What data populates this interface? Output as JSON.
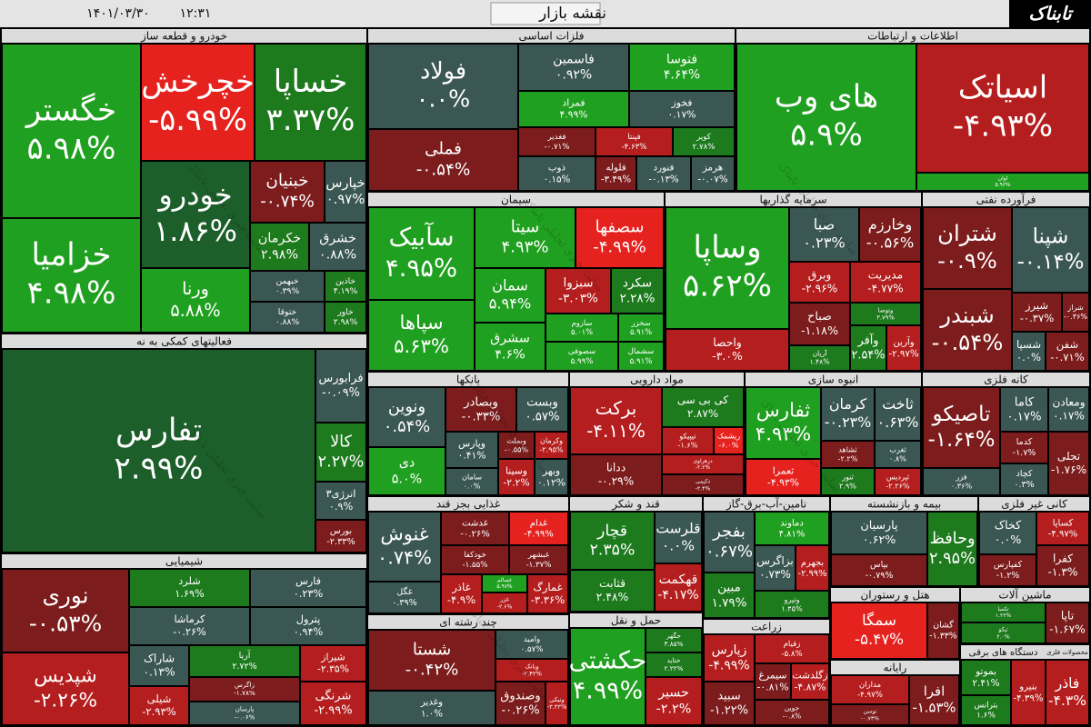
{
  "header": {
    "date": "۱۴۰۱/۰۳/۳۰",
    "time": "۱۲:۳۱",
    "title": "نقشه بازار",
    "logo": "تابناک",
    "watermark": "سایت خبری تحلیلی تابناک"
  },
  "sectors": [
    {
      "name": "خودرو و قطعه ساز",
      "tiles": [
        {
          "name": "خگستر",
          "change": "۵.۹۸%"
        },
        {
          "name": "خزامیا",
          "change": "۴.۹۸%"
        },
        {
          "name": "خچرخش",
          "change": "-۵.۹۹%"
        },
        {
          "name": "خساپا",
          "change": "۳.۳۷%"
        },
        {
          "name": "خودرو",
          "change": "۱.۸۶%"
        },
        {
          "name": "ورنا",
          "change": "۵.۸۸%"
        },
        {
          "name": "خبنیان",
          "change": "-۰.۷۴%"
        },
        {
          "name": "خپارس",
          "change": "۰.۹۷%"
        },
        {
          "name": "خکرمان",
          "change": "۲.۹۸%"
        },
        {
          "name": "خشرق",
          "change": "۰.۸۸%"
        },
        {
          "name": "خبهمن",
          "change": "۰.۳۹%"
        },
        {
          "name": "خاذین",
          "change": "۴.۱۹%"
        },
        {
          "name": "خاور",
          "change": "۲.۹۸%"
        },
        {
          "name": "ختوقا",
          "change": "۰.۸۸%"
        }
      ]
    },
    {
      "name": "فلزات اساسی",
      "tiles": [
        {
          "name": "فولاد",
          "change": "۰.۰%"
        },
        {
          "name": "فملی",
          "change": "-۰.۵۴%"
        },
        {
          "name": "فاسمین",
          "change": "۰.۹۲%"
        },
        {
          "name": "فتوسا",
          "change": "۴.۶۴%"
        },
        {
          "name": "فمراد",
          "change": "۴.۹۹%"
        },
        {
          "name": "فخوز",
          "change": "۰.۱۷%"
        },
        {
          "name": "فغدیر",
          "change": "-۰.۷۱%"
        },
        {
          "name": "فپنتا",
          "change": "-۴.۶۳%"
        },
        {
          "name": "کویر",
          "change": "۲.۷۸%"
        },
        {
          "name": "ذوب",
          "change": "۰.۱۵%"
        },
        {
          "name": "فلوله",
          "change": "-۳.۴۹%"
        },
        {
          "name": "فنورد",
          "change": "-۰.۱۳%"
        },
        {
          "name": "هرمز",
          "change": "-۰.۰۷%"
        }
      ]
    },
    {
      "name": "اطلاعات و ارتباطات",
      "tiles": [
        {
          "name": "های وب",
          "change": "۵.۹%"
        },
        {
          "name": "اسیاتک",
          "change": "-۴.۹۳%"
        },
        {
          "name": "اوان",
          "change": "۵.۹۶%"
        }
      ]
    },
    {
      "name": "سیمان",
      "tiles": [
        {
          "name": "سآبیک",
          "change": "۴.۹۵%"
        },
        {
          "name": "سپاها",
          "change": "۵.۶۳%"
        },
        {
          "name": "سیتا",
          "change": "۴.۹۳%"
        },
        {
          "name": "سصفها",
          "change": "-۴.۹۹%"
        },
        {
          "name": "سمان",
          "change": "۵.۹۴%"
        },
        {
          "name": "سبزوا",
          "change": "-۳.۰۳%"
        },
        {
          "name": "سکرد",
          "change": "۲.۲۸%"
        },
        {
          "name": "سشرق",
          "change": "۴.۶%"
        },
        {
          "name": "ساروم",
          "change": "۵.۰۱%"
        },
        {
          "name": "سصوفی",
          "change": "۵.۹۹%"
        },
        {
          "name": "سخزر",
          "change": "۵.۹۱%"
        },
        {
          "name": "سشمال",
          "change": "۵.۹۱%"
        }
      ]
    },
    {
      "name": "سرمایه گذاریها",
      "tiles": [
        {
          "name": "وساپا",
          "change": "۵.۶۲%"
        },
        {
          "name": "واحصا",
          "change": "-۳.۰%"
        },
        {
          "name": "صبا",
          "change": "۰.۲۳%"
        },
        {
          "name": "وخارزم",
          "change": "-۰.۵۶%"
        },
        {
          "name": "وبرق",
          "change": "-۲.۹۶%"
        },
        {
          "name": "مدیریت",
          "change": "-۴.۷۷%"
        },
        {
          "name": "صباح",
          "change": "-۱.۱۸%"
        },
        {
          "name": "وتوصا",
          "change": "۳.۷۹%"
        },
        {
          "name": "وآفر",
          "change": "۲.۵۴%"
        },
        {
          "name": "وآرین",
          "change": "-۲.۹۷%"
        },
        {
          "name": "آریان",
          "change": "۱.۴۸%"
        }
      ]
    },
    {
      "name": "فرآورده نفتی",
      "tiles": [
        {
          "name": "شتران",
          "change": "-۰.۹%"
        },
        {
          "name": "شپنا",
          "change": "-۰.۱۴%"
        },
        {
          "name": "شبندر",
          "change": "-۰.۵۴%"
        },
        {
          "name": "شیرز",
          "change": "-۰.۳۷%"
        },
        {
          "name": "شراز",
          "change": "-۰.۳۶%"
        },
        {
          "name": "شسپا",
          "change": "۰.۰%"
        },
        {
          "name": "شفن",
          "change": "-۰.۷۱%"
        }
      ]
    },
    {
      "name": "فعالیتهای کمکی به نه",
      "tiles": [
        {
          "name": "تفارس",
          "change": "۲.۹۹%"
        },
        {
          "name": "فرابورس",
          "change": "-۰.۰۹%"
        },
        {
          "name": "کالا",
          "change": "۲.۲۷%"
        },
        {
          "name": "انرژی۳",
          "change": "۰.۹%"
        },
        {
          "name": "بورس",
          "change": "-۲.۳۳%"
        }
      ]
    },
    {
      "name": "شیمیایی",
      "tiles": [
        {
          "name": "نوری",
          "change": "-۰.۵۳%"
        },
        {
          "name": "شپدیس",
          "change": "-۲.۲۶%"
        },
        {
          "name": "شلرد",
          "change": "۱.۶۹%"
        },
        {
          "name": "فارس",
          "change": "۰.۲۳%"
        },
        {
          "name": "کرماشا",
          "change": "-۰.۲۶%"
        },
        {
          "name": "پترول",
          "change": "۰.۹۴%"
        },
        {
          "name": "شاراک",
          "change": "۰.۱۳%"
        },
        {
          "name": "آریا",
          "change": "۲.۷۲%"
        },
        {
          "name": "شیراز",
          "change": "-۲.۳۵%"
        },
        {
          "name": "شیلی",
          "change": "-۲.۹۳%"
        },
        {
          "name": "زاگرس",
          "change": "-۱.۷۸%"
        },
        {
          "name": "پارسان",
          "change": "-۰.۰۶%"
        },
        {
          "name": "شرنگی",
          "change": "-۲.۹۹%"
        }
      ]
    },
    {
      "name": "بانکها",
      "tiles": [
        {
          "name": "ونوین",
          "change": "۰.۵۴%"
        },
        {
          "name": "دی",
          "change": "۵.۰%"
        },
        {
          "name": "وبصادر",
          "change": "-۰.۳۳%"
        },
        {
          "name": "وبست",
          "change": "۰.۵۷%"
        },
        {
          "name": "وپارس",
          "change": "۰.۴۱%"
        },
        {
          "name": "وبملت",
          "change": "-۰.۵۵%"
        },
        {
          "name": "وکرمان",
          "change": "-۲.۹۵%"
        },
        {
          "name": "سامان",
          "change": "۰.۰%"
        },
        {
          "name": "وسینا",
          "change": "-۲.۲%"
        },
        {
          "name": "وبهر",
          "change": "۰.۱۲%"
        }
      ]
    },
    {
      "name": "مواد دارویی",
      "tiles": [
        {
          "name": "برکت",
          "change": "-۴.۱۱%"
        },
        {
          "name": "ددانا",
          "change": "-۰.۲۹%"
        },
        {
          "name": "کی بی سی",
          "change": "۲.۸۷%"
        },
        {
          "name": "تیپیکو",
          "change": "-۱.۶%"
        },
        {
          "name": "ریشمک",
          "change": "-۶.۰%"
        },
        {
          "name": "دزهراوی",
          "change": "-۲.۲%"
        },
        {
          "name": "دکیمی",
          "change": "-۲.۴%"
        }
      ]
    },
    {
      "name": "انبوه سازی",
      "tiles": [
        {
          "name": "ثفارس",
          "change": "۴.۹۳%"
        },
        {
          "name": "ثعمرا",
          "change": "-۴.۹۳%"
        },
        {
          "name": "کرمان",
          "change": "-۰.۲۳%"
        },
        {
          "name": "ثاخت",
          "change": "۰.۶۳%"
        },
        {
          "name": "ثشاهد",
          "change": "-۲.۲%"
        },
        {
          "name": "ثغرب",
          "change": "۰.۸%"
        },
        {
          "name": "ثنور",
          "change": "۲.۹%"
        },
        {
          "name": "ثپردیس",
          "change": "-۲.۲۶%"
        }
      ]
    },
    {
      "name": "کانه فلزی",
      "tiles": [
        {
          "name": "تاصیکو",
          "change": "-۱.۶۴%"
        },
        {
          "name": "فزر",
          "change": "۰.۳۶%"
        },
        {
          "name": "کاما",
          "change": "۰.۱۷%"
        },
        {
          "name": "ومعادن",
          "change": "۰.۱۷%"
        },
        {
          "name": "کدما",
          "change": "-۱.۷%"
        },
        {
          "name": "کچاد",
          "change": "۰.۳%"
        },
        {
          "name": "تجلی",
          "change": "-۱.۷۶%"
        }
      ]
    },
    {
      "name": "غذایی بجز قند",
      "tiles": [
        {
          "name": "غنوش",
          "change": "۰.۷۴%"
        },
        {
          "name": "غگل",
          "change": "۰.۳۹%"
        },
        {
          "name": "غدشت",
          "change": "-۰.۲۶%"
        },
        {
          "name": "غدام",
          "change": "-۴.۹۹%"
        },
        {
          "name": "خودکفا",
          "change": "-۱.۵۵%"
        },
        {
          "name": "غبشهر",
          "change": "-۱.۳۷%"
        },
        {
          "name": "غاذر",
          "change": "-۴.۹%"
        },
        {
          "name": "غسالم",
          "change": "۵.۹۷%"
        },
        {
          "name": "غمارگ",
          "change": "-۳.۳۶%"
        },
        {
          "name": "غزر",
          "change": "-۲.۶%"
        }
      ]
    },
    {
      "name": "قند و شکر",
      "tiles": [
        {
          "name": "قچار",
          "change": "۲.۳۵%"
        },
        {
          "name": "قثابت",
          "change": "۲.۴۸%"
        },
        {
          "name": "قلرست",
          "change": "۰.۰%"
        },
        {
          "name": "قهکمت",
          "change": "-۴.۱۷%"
        }
      ]
    },
    {
      "name": "تامین-آب-برق-گاز",
      "tiles": [
        {
          "name": "بفجر",
          "change": "۰.۶۷%"
        },
        {
          "name": "مبین",
          "change": "۱.۷۹%"
        },
        {
          "name": "دماوند",
          "change": "۴.۸۱%"
        },
        {
          "name": "بزاگرس",
          "change": "۰.۷۳%"
        },
        {
          "name": "بجهرم",
          "change": "-۲.۹۹%"
        },
        {
          "name": "وتیرو",
          "change": "۱.۴۵%"
        }
      ]
    },
    {
      "name": "بیمه و بازنشسته",
      "tiles": [
        {
          "name": "پارسیان",
          "change": "۰.۶۲%"
        },
        {
          "name": "بپاس",
          "change": "-۰.۷۹%"
        },
        {
          "name": "وحافظ",
          "change": "۲.۹۵%"
        }
      ]
    },
    {
      "name": "کانی غیر فلزی",
      "tiles": [
        {
          "name": "کخاک",
          "change": "۰.۰%"
        },
        {
          "name": "کفپارس",
          "change": "-۱.۲%"
        },
        {
          "name": "کساپا",
          "change": "-۴.۹۷%"
        },
        {
          "name": "کفرا",
          "change": "-۱.۳%"
        }
      ]
    },
    {
      "name": "هتل و رستوران",
      "tiles": [
        {
          "name": "سمگا",
          "change": "-۵.۴۷%"
        },
        {
          "name": "گشان",
          "change": "-۱.۳۳%"
        }
      ]
    },
    {
      "name": "ماشین آلات",
      "tiles": [
        {
          "name": "تکمبا",
          "change": "۱.۲۲%"
        },
        {
          "name": "تیکو",
          "change": "۲.۰%"
        },
        {
          "name": "تاپا",
          "change": "-۱.۶۷%"
        }
      ]
    },
    {
      "name": "رایانه",
      "tiles": [
        {
          "name": "مداران",
          "change": "-۴.۹۷%"
        },
        {
          "name": "توسن",
          "change": "-۰.۷۳%"
        },
        {
          "name": "افرا",
          "change": "-۱.۵۳%"
        }
      ]
    },
    {
      "name": "دستگاه های برقی",
      "tiles": [
        {
          "name": "بموتو",
          "change": "۲.۴۱%"
        },
        {
          "name": "بترانس",
          "change": "۱.۶%"
        },
        {
          "name": "بنیرو",
          "change": "-۴.۳۹%"
        }
      ]
    },
    {
      "name": "محصولات فلزی",
      "tiles": [
        {
          "name": "فاذر",
          "change": "-۴.۳%"
        }
      ]
    },
    {
      "name": "چند رشته ای",
      "tiles": [
        {
          "name": "شستا",
          "change": "-۰.۴۲%"
        },
        {
          "name": "وغدیر",
          "change": "۱.۰%"
        },
        {
          "name": "وامید",
          "change": "۰.۵۷%"
        },
        {
          "name": "وبانک",
          "change": "-۲.۴۳%"
        },
        {
          "name": "وصندوق",
          "change": "-۰.۲۶%"
        },
        {
          "name": "ونیکی",
          "change": "-۳.۳۳%"
        }
      ]
    },
    {
      "name": "حمل و نقل",
      "tiles": [
        {
          "name": "حکشتی",
          "change": "۴.۹۹%"
        },
        {
          "name": "حگهر",
          "change": "۳.۸۵%"
        },
        {
          "name": "حتاید",
          "change": "۲.۲۲%"
        },
        {
          "name": "حسیر",
          "change": "-۲.۲%"
        }
      ]
    },
    {
      "name": "زراعت",
      "tiles": [
        {
          "name": "زپارس",
          "change": "-۴.۹۹%"
        },
        {
          "name": "زقیام",
          "change": "-۵.۸%"
        },
        {
          "name": "سیمرغ",
          "change": "-۰.۸۱%"
        },
        {
          "name": "زگلدشت",
          "change": "-۴.۸۷%"
        },
        {
          "name": "سبید",
          "change": "-۱.۲۲%"
        },
        {
          "name": "جوین",
          "change": "-۰.۸%"
        }
      ]
    }
  ]
}
